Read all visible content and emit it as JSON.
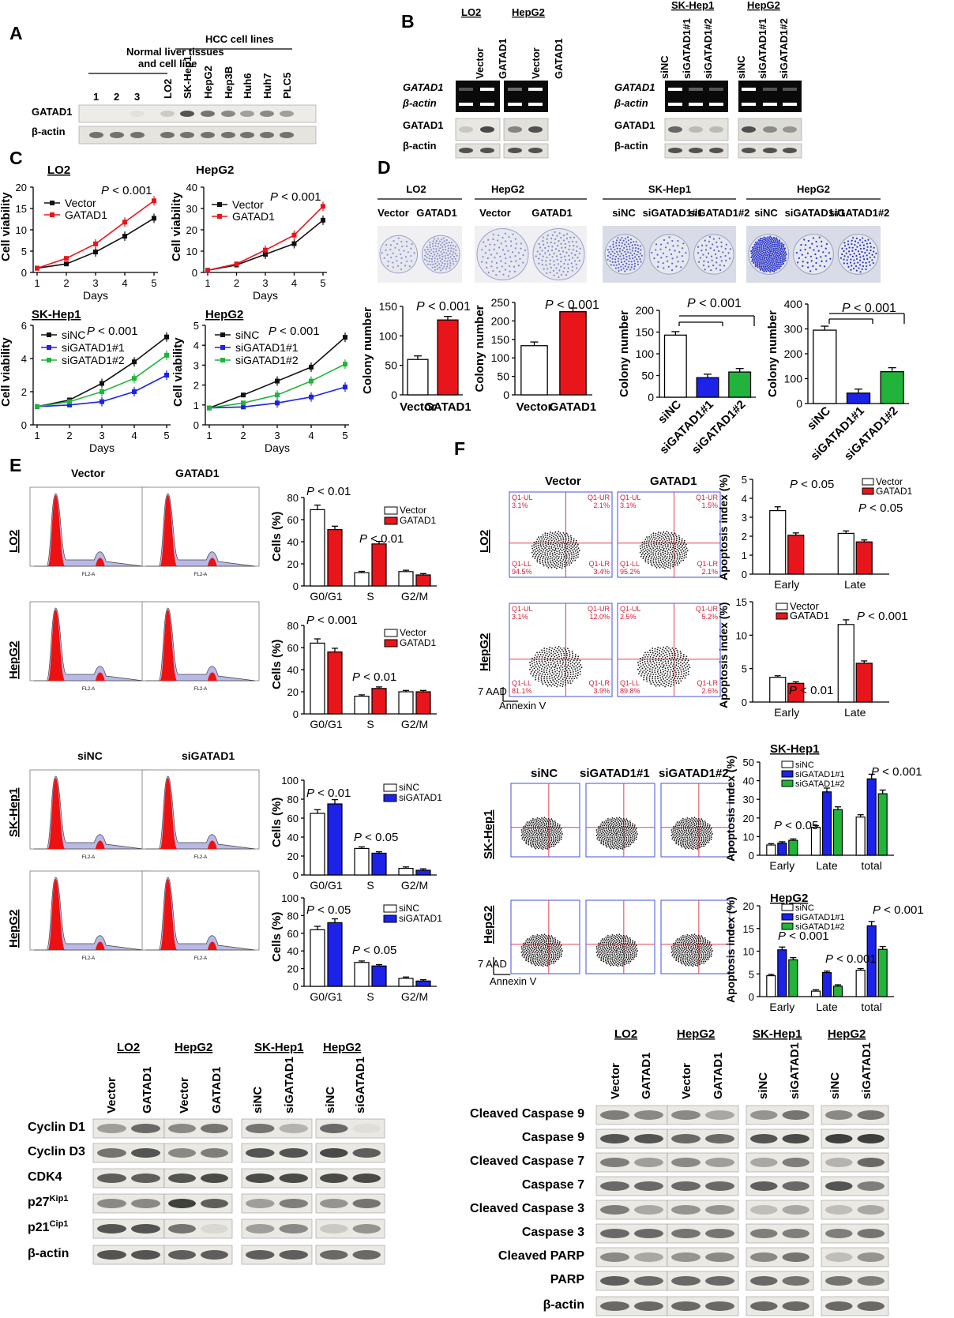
{
  "panels": {
    "A": "A",
    "B": "B",
    "C": "C",
    "D": "D",
    "E": "E",
    "F": "F"
  },
  "colors": {
    "red": "#e8151a",
    "blue": "#1c22e8",
    "green": "#22b43a",
    "black": "#111111",
    "white": "#ffffff"
  },
  "A": {
    "group1": "Normal liver tissues",
    "group1b": "and cell line",
    "group2": "HCC cell lines",
    "lanes": [
      "1",
      "2",
      "3",
      "LO2",
      "SK-Hep1",
      "HepG2",
      "Hep3B",
      "Huh6",
      "Huh7",
      "PLC5"
    ],
    "rows": [
      "GATAD1",
      "β-actin"
    ]
  },
  "B": {
    "left": {
      "cells": [
        "LO2",
        "HepG2"
      ],
      "lanes": [
        "Vector",
        "GATAD1",
        "Vector",
        "GATAD1"
      ],
      "rows": [
        "GATAD1",
        "β-actin",
        "GATAD1",
        "β-actin"
      ]
    },
    "right": {
      "cells": [
        "SK-Hep1",
        "HepG2"
      ],
      "lanes": [
        "siNC",
        "siGATAD1#1",
        "siGATAD1#2",
        "siNC",
        "siGATAD1#1",
        "siGATAD1#2"
      ],
      "rows": [
        "GATAD1",
        "β-actin",
        "GATAD1",
        "β-actin"
      ]
    }
  },
  "C": {
    "xlabel": "Days",
    "ylabel": "Cell viability",
    "charts": [
      {
        "title": "LO2",
        "p": "P < 0.001",
        "legend": [
          "Vector",
          "GATAD1"
        ]
      },
      {
        "title": "HepG2",
        "p": "P < 0.001",
        "legend": [
          "Vector",
          "GATAD1"
        ]
      },
      {
        "title": "SK-Hep1",
        "p": "P < 0.001",
        "legend": [
          "siNC",
          "siGATAD1#1",
          "siGATAD1#2"
        ]
      },
      {
        "title": "HepG2",
        "p": "P < 0.001",
        "legend": [
          "siNC",
          "siGATAD1#1",
          "siGATAD1#2"
        ]
      }
    ]
  },
  "D": {
    "plate_groups": [
      {
        "title": "LO2",
        "labels": [
          "Vector",
          "GATAD1"
        ]
      },
      {
        "title": "HepG2",
        "labels": [
          "Vector",
          "GATAD1"
        ]
      },
      {
        "title": "SK-Hep1",
        "labels": [
          "siNC",
          "siGATAD1#1",
          "siGATAD1#2"
        ]
      },
      {
        "title": "HepG2",
        "labels": [
          "siNC",
          "siGATAD1#1",
          "siGATAD1#2"
        ]
      }
    ],
    "ylabel": "Colony number",
    "p": "P < 0.001"
  },
  "E": {
    "flow_titles": [
      "Vector",
      "GATAD1",
      "siNC",
      "siGATAD1"
    ],
    "rows": [
      "LO2",
      "HepG2",
      "SK-Hep1",
      "HepG2"
    ],
    "ylabel": "Cells (%)",
    "flow_axis": "FL2-A",
    "p_values": [
      [
        "P < 0.01",
        "P < 0.01"
      ],
      [
        "P < 0.001",
        "P < 0.01"
      ],
      [
        "P < 0.01",
        "P < 0.05"
      ],
      [
        "P < 0.05",
        "P < 0.05"
      ]
    ],
    "legends": [
      [
        "Vector",
        "GATAD1"
      ],
      [
        "Vector",
        "GATAD1"
      ],
      [
        "siNC",
        "siGATAD1"
      ],
      [
        "siNC",
        "siGATAD1"
      ]
    ]
  },
  "F": {
    "flow_titles_top": [
      "Vector",
      "GATAD1"
    ],
    "flow_titles_bottom": [
      "siNC",
      "siGATAD1#1",
      "siGATAD1#2"
    ],
    "rows": [
      "LO2",
      "HepG2",
      "SK-Hep1",
      "HepG2"
    ],
    "axis_y": "7 AAD",
    "axis_x": "Annexin V",
    "quad_labels": [
      "Q1-UL",
      "Q1-UR",
      "Q1-LL",
      "Q1-LR"
    ],
    "quads": [
      [
        "3.1%",
        "2.1%",
        "94.5%",
        "3.4%"
      ],
      [
        "3.1%",
        "1.5%",
        "95.2%",
        "2.1%"
      ],
      [
        "3.1%",
        "12.0%",
        "81.1%",
        "3.9%"
      ],
      [
        "2.5%",
        "5.2%",
        "89.8%",
        "2.6%"
      ]
    ],
    "ylabel": "Apoptosis index (%)",
    "bar_titles": [
      "SK-Hep1",
      "HepG2"
    ]
  },
  "WB_left": {
    "cells": [
      "LO2",
      "HepG2",
      "SK-Hep1",
      "HepG2"
    ],
    "lanes": [
      "Vector",
      "GATAD1",
      "Vector",
      "GATAD1",
      "siNC",
      "siGATAD1",
      "siNC",
      "siGATAD1"
    ],
    "rows": [
      "Cyclin D1",
      "Cyclin D3",
      "CDK4",
      "p27",
      "p21",
      "β-actin"
    ],
    "sup": [
      "Kip1",
      "Cip1"
    ]
  },
  "WB_right": {
    "cells": [
      "LO2",
      "HepG2",
      "SK-Hep1",
      "HepG2"
    ],
    "lanes": [
      "Vector",
      "GATAD1",
      "Vector",
      "GATAD1",
      "siNC",
      "siGATAD1",
      "siNC",
      "siGATAD1"
    ],
    "rows": [
      "Cleaved Caspase 9",
      "Caspase 9",
      "Cleaved Caspase 7",
      "Caspase 7",
      "Cleaved Caspase 3",
      "Caspase 3",
      "Cleaved PARP",
      "PARP",
      "β-actin"
    ]
  },
  "chart_data": [
    {
      "panel": "C",
      "type": "line",
      "title": "LO2",
      "x": [
        1,
        2,
        3,
        4,
        5
      ],
      "ylim": [
        0,
        20
      ],
      "ylabel": "Cell viability",
      "xlabel": "Days",
      "series": [
        {
          "name": "Vector",
          "color": "#111111",
          "values": [
            1,
            2,
            4.8,
            8.5,
            12.7
          ]
        },
        {
          "name": "GATAD1",
          "color": "#e8151a",
          "values": [
            1,
            3.3,
            6.7,
            11.8,
            16.8
          ]
        }
      ]
    },
    {
      "panel": "C",
      "type": "line",
      "title": "HepG2",
      "x": [
        1,
        2,
        3,
        4,
        5
      ],
      "ylim": [
        0,
        40
      ],
      "ylabel": "Cell viability",
      "xlabel": "Days",
      "series": [
        {
          "name": "Vector",
          "color": "#111111",
          "values": [
            1,
            3.5,
            8.5,
            13.5,
            24.5
          ]
        },
        {
          "name": "GATAD1",
          "color": "#e8151a",
          "values": [
            1,
            4,
            10.5,
            17.5,
            31
          ]
        }
      ]
    },
    {
      "panel": "C",
      "type": "line",
      "title": "SK-Hep1",
      "x": [
        1,
        2,
        3,
        4,
        5
      ],
      "ylim": [
        0,
        6
      ],
      "ylabel": "Cell viability",
      "xlabel": "Days",
      "series": [
        {
          "name": "siNC",
          "color": "#111111",
          "values": [
            1.1,
            1.5,
            2.5,
            3.8,
            5.3
          ]
        },
        {
          "name": "siGATAD1#1",
          "color": "#1c22e8",
          "values": [
            1.1,
            1.2,
            1.4,
            2,
            3
          ]
        },
        {
          "name": "siGATAD1#2",
          "color": "#22b43a",
          "values": [
            1.1,
            1.4,
            2,
            2.8,
            4.2
          ]
        }
      ]
    },
    {
      "panel": "C",
      "type": "line",
      "title": "HepG2",
      "x": [
        1,
        2,
        3,
        4,
        5
      ],
      "ylim": [
        0,
        5
      ],
      "ylabel": "Cell viability",
      "xlabel": "Days",
      "series": [
        {
          "name": "siNC",
          "color": "#111111",
          "values": [
            0.85,
            1.5,
            2.2,
            2.9,
            4.4
          ]
        },
        {
          "name": "siGATAD1#1",
          "color": "#1c22e8",
          "values": [
            0.85,
            0.9,
            1.1,
            1.4,
            1.9
          ]
        },
        {
          "name": "siGATAD1#2",
          "color": "#22b43a",
          "values": [
            0.85,
            1.1,
            1.5,
            2.2,
            3.05
          ]
        }
      ]
    },
    {
      "panel": "D",
      "type": "bar",
      "categories": [
        "Vector",
        "GATAD1"
      ],
      "ylim": [
        0,
        150
      ],
      "values": [
        60,
        127
      ],
      "colors": [
        "#ffffff",
        "#e8151a"
      ],
      "ylabel": "Colony number"
    },
    {
      "panel": "D",
      "type": "bar",
      "categories": [
        "Vector",
        "GATAD1"
      ],
      "ylim": [
        0,
        250
      ],
      "values": [
        133,
        225
      ],
      "colors": [
        "#ffffff",
        "#e8151a"
      ],
      "ylabel": "Colony number"
    },
    {
      "panel": "D",
      "type": "bar",
      "categories": [
        "siNC",
        "siGATAD1#1",
        "siGATAD1#2"
      ],
      "ylim": [
        0,
        200
      ],
      "values": [
        143,
        45,
        58
      ],
      "colors": [
        "#ffffff",
        "#1c22e8",
        "#22b43a"
      ],
      "ylabel": "Colony number"
    },
    {
      "panel": "D",
      "type": "bar",
      "categories": [
        "siNC",
        "siGATAD1#1",
        "siGATAD1#2"
      ],
      "ylim": [
        0,
        400
      ],
      "values": [
        295,
        42,
        128
      ],
      "colors": [
        "#ffffff",
        "#1c22e8",
        "#22b43a"
      ],
      "ylabel": "Colony number"
    },
    {
      "panel": "E",
      "type": "bar",
      "title": "LO2",
      "categories": [
        "G0/G1",
        "S",
        "G2/M"
      ],
      "ylim": [
        0,
        80
      ],
      "series": [
        {
          "name": "Vector",
          "values": [
            69,
            12,
            13
          ]
        },
        {
          "name": "GATAD1",
          "values": [
            51,
            38,
            10
          ]
        }
      ]
    },
    {
      "panel": "E",
      "type": "bar",
      "title": "HepG2",
      "categories": [
        "G0/G1",
        "S",
        "G2/M"
      ],
      "ylim": [
        0,
        80
      ],
      "series": [
        {
          "name": "Vector",
          "values": [
            64,
            16,
            20
          ]
        },
        {
          "name": "GATAD1",
          "values": [
            56,
            23,
            20
          ]
        }
      ]
    },
    {
      "panel": "E",
      "type": "bar",
      "title": "SK-Hep1",
      "categories": [
        "G0/G1",
        "S",
        "G2/M"
      ],
      "ylim": [
        0,
        100
      ],
      "series": [
        {
          "name": "siNC",
          "values": [
            65,
            28,
            7
          ]
        },
        {
          "name": "siGATAD1",
          "values": [
            75,
            23,
            5
          ]
        }
      ]
    },
    {
      "panel": "E",
      "type": "bar",
      "title": "HepG2",
      "categories": [
        "G0/G1",
        "S",
        "G2/M"
      ],
      "ylim": [
        0,
        100
      ],
      "series": [
        {
          "name": "siNC",
          "values": [
            64,
            27,
            9
          ]
        },
        {
          "name": "siGATAD1",
          "values": [
            72,
            23,
            6
          ]
        }
      ]
    },
    {
      "panel": "F",
      "type": "bar",
      "title": "LO2",
      "categories": [
        "Early",
        "Late"
      ],
      "ylim": [
        0,
        5
      ],
      "series": [
        {
          "name": "Vector",
          "values": [
            3.35,
            2.15
          ]
        },
        {
          "name": "GATAD1",
          "values": [
            2.05,
            1.7
          ]
        }
      ]
    },
    {
      "panel": "F",
      "type": "bar",
      "title": "HepG2",
      "categories": [
        "Early",
        "Late"
      ],
      "ylim": [
        0,
        15
      ],
      "series": [
        {
          "name": "Vector",
          "values": [
            3.7,
            11.6
          ]
        },
        {
          "name": "GATAD1",
          "values": [
            2.8,
            5.8
          ]
        }
      ]
    },
    {
      "panel": "F",
      "type": "bar",
      "title": "SK-Hep1",
      "categories": [
        "Early",
        "Late",
        "total"
      ],
      "ylim": [
        0,
        50
      ],
      "series": [
        {
          "name": "siNC",
          "values": [
            5.5,
            15,
            20.5
          ]
        },
        {
          "name": "siGATAD1#1",
          "values": [
            6.5,
            34,
            41
          ]
        },
        {
          "name": "siGATAD1#2",
          "values": [
            8,
            24.5,
            33
          ]
        }
      ]
    },
    {
      "panel": "F",
      "type": "bar",
      "title": "HepG2",
      "categories": [
        "Early",
        "Late",
        "total"
      ],
      "ylim": [
        0,
        20
      ],
      "series": [
        {
          "name": "siNC",
          "values": [
            4.6,
            1.2,
            5.8
          ]
        },
        {
          "name": "siGATAD1#1",
          "values": [
            10.3,
            5.3,
            15.6
          ]
        },
        {
          "name": "siGATAD1#2",
          "values": [
            8.1,
            2.3,
            10.4
          ]
        }
      ]
    }
  ]
}
